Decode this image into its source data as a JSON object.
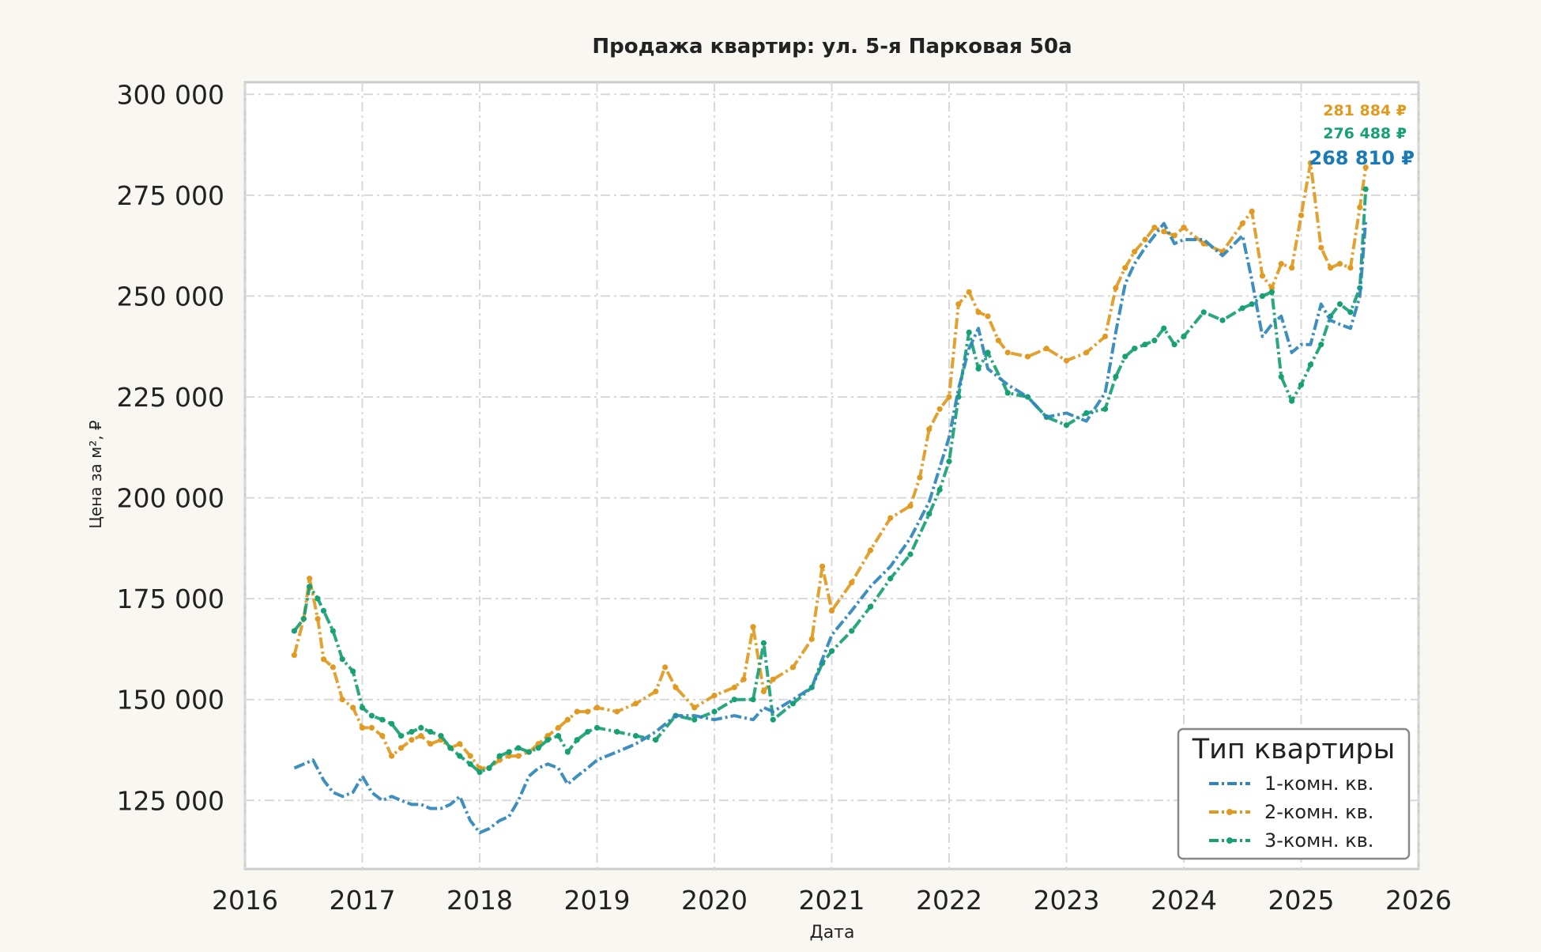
{
  "chart_data": {
    "type": "line",
    "title": "Продажа квартир: ул. 5-я Парковая 50а",
    "xlabel": "Дата",
    "ylabel": "Цена за м², ₽",
    "xlim": [
      2016.0,
      2026.0
    ],
    "ylim": [
      108000,
      303000
    ],
    "x_ticks": [
      "2016",
      "2017",
      "2018",
      "2019",
      "2020",
      "2021",
      "2022",
      "2023",
      "2024",
      "2025",
      "2026"
    ],
    "x_tick_values": [
      2016,
      2017,
      2018,
      2019,
      2020,
      2021,
      2022,
      2023,
      2024,
      2025,
      2026
    ],
    "y_ticks": [
      "125 000",
      "150 000",
      "175 000",
      "200 000",
      "225 000",
      "250 000",
      "275 000",
      "300 000"
    ],
    "y_tick_values": [
      125000,
      150000,
      175000,
      200000,
      225000,
      250000,
      275000,
      300000
    ],
    "grid": true,
    "legend": {
      "title": "Тип квартиры",
      "placement": "bottom-right"
    },
    "series": [
      {
        "name": "1-комн. кв.",
        "color": "#2e86b8",
        "style": "dashdot",
        "x": [
          2016.42,
          2016.5,
          2016.58,
          2016.67,
          2016.75,
          2016.83,
          2016.92,
          2017.0,
          2017.08,
          2017.17,
          2017.25,
          2017.33,
          2017.42,
          2017.5,
          2017.58,
          2017.67,
          2017.75,
          2017.83,
          2017.92,
          2018.0,
          2018.08,
          2018.17,
          2018.25,
          2018.33,
          2018.42,
          2018.5,
          2018.58,
          2018.67,
          2018.75,
          2018.83,
          2018.92,
          2019.0,
          2019.17,
          2019.33,
          2019.5,
          2019.67,
          2019.83,
          2020.0,
          2020.17,
          2020.33,
          2020.42,
          2020.5,
          2020.67,
          2020.83,
          2020.92,
          2021.0,
          2021.17,
          2021.33,
          2021.5,
          2021.67,
          2021.83,
          2022.0,
          2022.08,
          2022.17,
          2022.25,
          2022.33,
          2022.5,
          2022.67,
          2022.83,
          2023.0,
          2023.17,
          2023.33,
          2023.42,
          2023.5,
          2023.58,
          2023.67,
          2023.75,
          2023.83,
          2023.92,
          2024.0,
          2024.17,
          2024.33,
          2024.5,
          2024.58,
          2024.67,
          2024.75,
          2024.83,
          2024.92,
          2025.0,
          2025.08,
          2025.17,
          2025.25,
          2025.33,
          2025.42,
          2025.5,
          2025.55
        ],
        "values": [
          133000,
          134000,
          135000,
          130000,
          127000,
          126000,
          127000,
          131000,
          127000,
          125000,
          126000,
          125000,
          124000,
          124000,
          123000,
          123000,
          124000,
          126000,
          120000,
          117000,
          118000,
          120000,
          121000,
          125000,
          131000,
          133000,
          134000,
          133000,
          129000,
          131000,
          133000,
          135000,
          137000,
          139000,
          142000,
          146000,
          146000,
          145000,
          146000,
          145000,
          148000,
          147000,
          150000,
          153000,
          160000,
          166000,
          172000,
          178000,
          183000,
          190000,
          199000,
          215000,
          227000,
          237000,
          242000,
          232000,
          228000,
          225000,
          220000,
          221000,
          219000,
          226000,
          241000,
          253000,
          258000,
          262000,
          265000,
          268000,
          263000,
          264000,
          264000,
          260000,
          265000,
          254000,
          240000,
          243000,
          245000,
          236000,
          238000,
          238000,
          248000,
          244000,
          243000,
          242000,
          250000,
          268810
        ]
      },
      {
        "name": "2-комн. кв.",
        "color": "#e09a21",
        "style": "dashdot-markers",
        "x": [
          2016.42,
          2016.5,
          2016.55,
          2016.62,
          2016.67,
          2016.75,
          2016.83,
          2016.92,
          2017.0,
          2017.08,
          2017.17,
          2017.25,
          2017.33,
          2017.42,
          2017.5,
          2017.58,
          2017.67,
          2017.75,
          2017.83,
          2017.92,
          2018.0,
          2018.08,
          2018.17,
          2018.25,
          2018.33,
          2018.42,
          2018.5,
          2018.58,
          2018.67,
          2018.75,
          2018.83,
          2018.92,
          2019.0,
          2019.17,
          2019.33,
          2019.5,
          2019.58,
          2019.67,
          2019.83,
          2020.0,
          2020.17,
          2020.25,
          2020.33,
          2020.42,
          2020.5,
          2020.67,
          2020.83,
          2020.92,
          2021.0,
          2021.17,
          2021.33,
          2021.5,
          2021.67,
          2021.75,
          2021.83,
          2021.92,
          2022.0,
          2022.08,
          2022.17,
          2022.25,
          2022.33,
          2022.42,
          2022.5,
          2022.67,
          2022.83,
          2023.0,
          2023.17,
          2023.33,
          2023.42,
          2023.5,
          2023.58,
          2023.67,
          2023.75,
          2023.83,
          2023.92,
          2024.0,
          2024.17,
          2024.33,
          2024.5,
          2024.58,
          2024.67,
          2024.75,
          2024.83,
          2024.92,
          2025.0,
          2025.08,
          2025.17,
          2025.25,
          2025.33,
          2025.42,
          2025.5,
          2025.55
        ],
        "values": [
          161000,
          170000,
          180000,
          170000,
          160000,
          158000,
          150000,
          148000,
          143000,
          143000,
          141000,
          136000,
          138000,
          140000,
          141000,
          139000,
          140000,
          138000,
          139000,
          136000,
          133000,
          133000,
          135000,
          136000,
          136000,
          137000,
          139000,
          141000,
          143000,
          145000,
          147000,
          147000,
          148000,
          147000,
          149000,
          152000,
          158000,
          153000,
          148000,
          151000,
          153000,
          155000,
          168000,
          152000,
          155000,
          158000,
          165000,
          183000,
          172000,
          179000,
          187000,
          195000,
          198000,
          205000,
          217000,
          222000,
          225000,
          248000,
          251000,
          246000,
          245000,
          239000,
          236000,
          235000,
          237000,
          234000,
          236000,
          240000,
          252000,
          257000,
          261000,
          264000,
          267000,
          266000,
          265000,
          267000,
          263000,
          261000,
          268000,
          271000,
          255000,
          252000,
          258000,
          257000,
          270000,
          283000,
          262000,
          257000,
          258000,
          257000,
          272000,
          281884
        ]
      },
      {
        "name": "3-комн. кв.",
        "color": "#17a074",
        "style": "dashdot-markers",
        "x": [
          2016.42,
          2016.5,
          2016.55,
          2016.62,
          2016.67,
          2016.75,
          2016.83,
          2016.92,
          2017.0,
          2017.08,
          2017.17,
          2017.25,
          2017.33,
          2017.42,
          2017.5,
          2017.58,
          2017.67,
          2017.75,
          2017.83,
          2017.92,
          2018.0,
          2018.08,
          2018.17,
          2018.25,
          2018.33,
          2018.42,
          2018.5,
          2018.58,
          2018.67,
          2018.75,
          2018.83,
          2018.92,
          2019.0,
          2019.17,
          2019.33,
          2019.5,
          2019.67,
          2019.83,
          2020.0,
          2020.17,
          2020.33,
          2020.42,
          2020.5,
          2020.67,
          2020.83,
          2020.92,
          2021.0,
          2021.17,
          2021.33,
          2021.5,
          2021.67,
          2021.83,
          2021.92,
          2022.0,
          2022.08,
          2022.17,
          2022.25,
          2022.33,
          2022.5,
          2022.67,
          2022.83,
          2023.0,
          2023.17,
          2023.33,
          2023.42,
          2023.5,
          2023.58,
          2023.67,
          2023.75,
          2023.83,
          2023.92,
          2024.0,
          2024.17,
          2024.33,
          2024.5,
          2024.58,
          2024.67,
          2024.75,
          2024.83,
          2024.92,
          2025.0,
          2025.08,
          2025.17,
          2025.25,
          2025.33,
          2025.42,
          2025.5,
          2025.55
        ],
        "values": [
          167000,
          170000,
          178000,
          175000,
          172000,
          167000,
          160000,
          157000,
          148000,
          146000,
          145000,
          144000,
          141000,
          142000,
          143000,
          142000,
          141000,
          138000,
          136000,
          134000,
          132000,
          133000,
          136000,
          137000,
          138000,
          137000,
          138000,
          140000,
          141000,
          137000,
          140000,
          142000,
          143000,
          142000,
          141000,
          140000,
          146000,
          145000,
          147000,
          150000,
          150000,
          164000,
          145000,
          149000,
          153000,
          159000,
          162000,
          167000,
          173000,
          180000,
          186000,
          196000,
          202000,
          209000,
          225000,
          241000,
          232000,
          236000,
          226000,
          225000,
          220000,
          218000,
          221000,
          222000,
          230000,
          235000,
          237000,
          238000,
          239000,
          242000,
          238000,
          240000,
          246000,
          244000,
          247000,
          248000,
          250000,
          251000,
          230000,
          224000,
          228000,
          233000,
          238000,
          245000,
          248000,
          246000,
          252000,
          276488
        ]
      }
    ],
    "end_labels": [
      {
        "text": "281 884 ₽",
        "color": "#e09a21",
        "value": 281884
      },
      {
        "text": "276 488 ₽",
        "color": "#17a074",
        "value": 276488
      },
      {
        "text": "268 810 ₽",
        "color": "#1a7ab5",
        "value": 268810
      }
    ]
  }
}
